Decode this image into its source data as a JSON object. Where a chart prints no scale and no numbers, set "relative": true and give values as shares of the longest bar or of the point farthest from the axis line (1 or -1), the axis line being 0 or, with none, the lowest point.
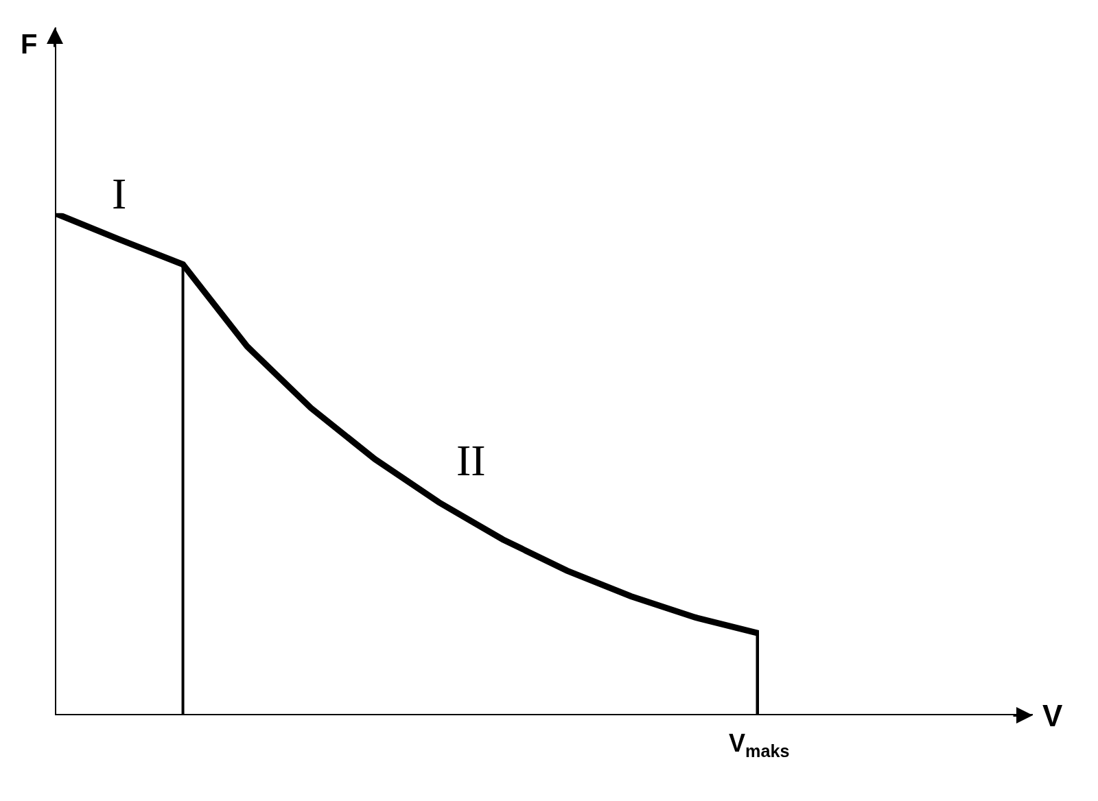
{
  "chart_data": {
    "type": "line",
    "relative": true,
    "categories": [
      null,
      null,
      null,
      null,
      null,
      null,
      null,
      null,
      null,
      null,
      null,
      null
    ],
    "series": [
      {
        "color": "#000000",
        "values": [
          1,
          0.948,
          0.898,
          0.735,
          0.612,
          0.51,
          0.424,
          0.35,
          0.288,
          0.237,
          0.195,
          0.163
        ]
      }
    ],
    "marker": "none",
    "line_style": "solid",
    "annotations": [
      "I",
      "II",
      "V$_{maks}$",
      "F",
      "V"
    ]
  }
}
